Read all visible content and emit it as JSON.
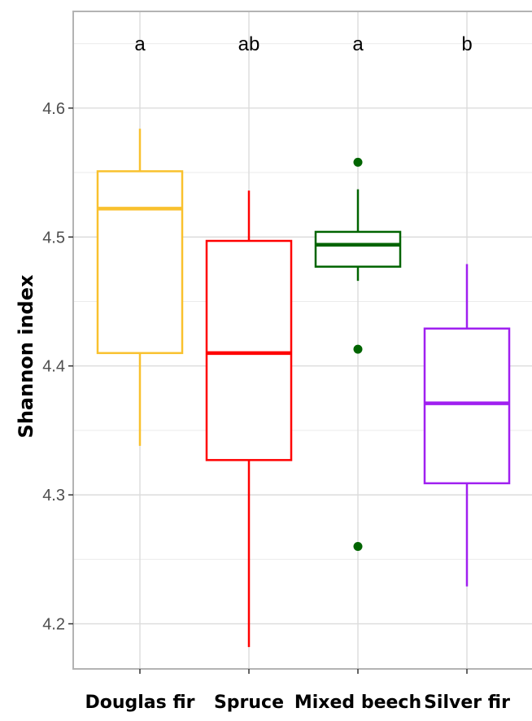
{
  "chart_data": {
    "type": "boxplot",
    "title": "",
    "xlabel": "",
    "ylabel": "Shannon index",
    "ylim": [
      4.165,
      4.675
    ],
    "yticks": [
      4.2,
      4.3,
      4.4,
      4.5,
      4.6
    ],
    "ytick_labels": [
      "4.2",
      "4.3",
      "4.4",
      "4.5",
      "4.6"
    ],
    "grid": true,
    "legend": "none",
    "categories": [
      "Douglas fir",
      "Spruce",
      "Mixed beech",
      "Silver fir"
    ],
    "series": [
      {
        "category": "Douglas fir",
        "color": "#f9c12e",
        "whisker_low": 4.338,
        "q1": 4.41,
        "median": 4.522,
        "q3": 4.551,
        "whisker_high": 4.584,
        "outliers": [],
        "significance": "a"
      },
      {
        "category": "Spruce",
        "color": "#ff0000",
        "whisker_low": 4.182,
        "q1": 4.327,
        "median": 4.41,
        "q3": 4.497,
        "whisker_high": 4.536,
        "outliers": [],
        "significance": "ab"
      },
      {
        "category": "Mixed beech",
        "color": "#006400",
        "whisker_low": 4.466,
        "q1": 4.477,
        "median": 4.494,
        "q3": 4.504,
        "whisker_high": 4.537,
        "outliers": [
          4.558,
          4.413,
          4.26
        ],
        "significance": "a"
      },
      {
        "category": "Silver fir",
        "color": "#a020f0",
        "whisker_low": 4.229,
        "q1": 4.309,
        "median": 4.371,
        "q3": 4.429,
        "whisker_high": 4.479,
        "outliers": [],
        "significance": "b"
      }
    ]
  }
}
